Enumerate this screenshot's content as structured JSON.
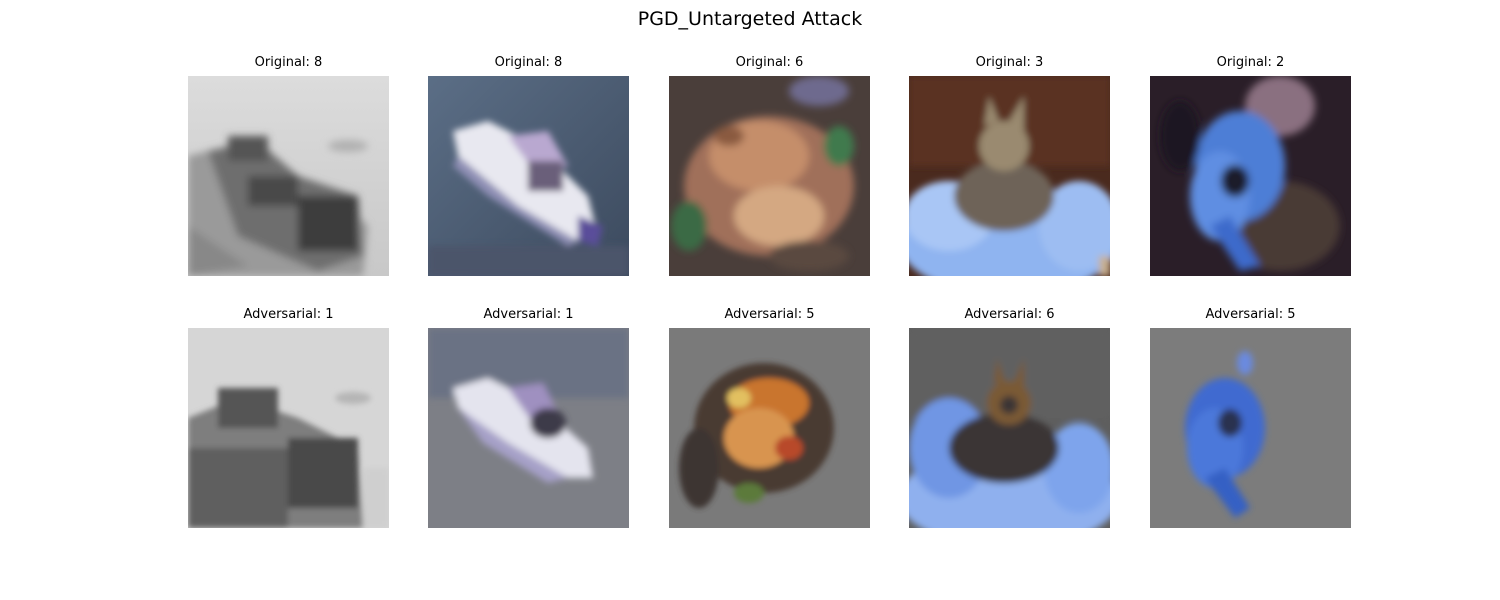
{
  "figure": {
    "title": "PGD_Untargeted Attack",
    "rows": [
      {
        "row": "original",
        "items": [
          {
            "caption": "Original: 8",
            "image": "grayscale-ship-image"
          },
          {
            "caption": "Original: 8",
            "image": "white-boat-on-water-image"
          },
          {
            "caption": "Original: 6",
            "image": "frog-image"
          },
          {
            "caption": "Original: 3",
            "image": "cat-on-blue-cushion-image"
          },
          {
            "caption": "Original: 2",
            "image": "blue-bird-dark-background-image"
          }
        ]
      },
      {
        "row": "adversarial",
        "items": [
          {
            "caption": "Adversarial: 1",
            "image": "adversarial-ship-image"
          },
          {
            "caption": "Adversarial: 1",
            "image": "adversarial-boat-image"
          },
          {
            "caption": "Adversarial: 5",
            "image": "adversarial-frog-image"
          },
          {
            "caption": "Adversarial: 6",
            "image": "adversarial-cat-image"
          },
          {
            "caption": "Adversarial: 5",
            "image": "adversarial-bird-image"
          }
        ]
      }
    ]
  }
}
